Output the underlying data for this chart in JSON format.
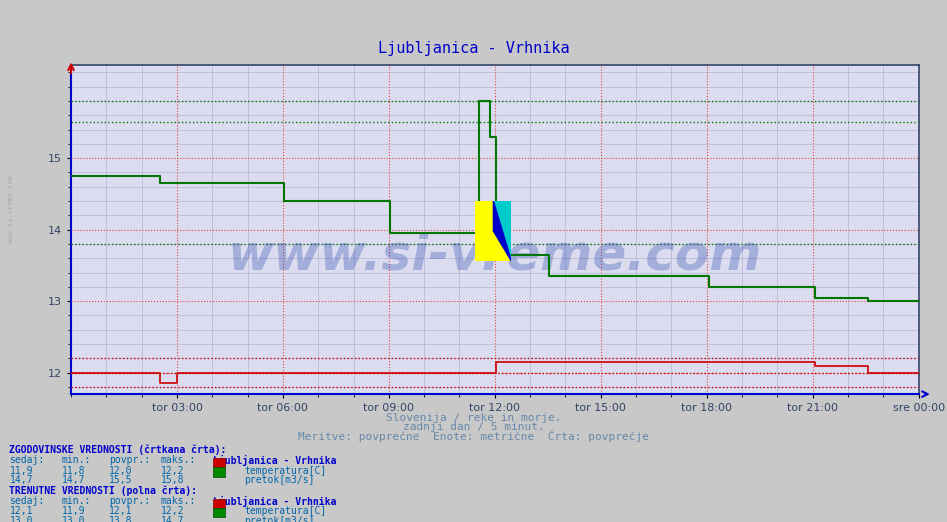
{
  "title": "Ljubljanica - Vrhnika",
  "title_color": "#0000cc",
  "bg_color": "#c8c8c8",
  "plot_bg_color": "#d8d8ff",
  "subtitle1": "Slovenija / reke in morje.",
  "subtitle2": "zadnji dan / 5 minut.",
  "subtitle3": "Meritve: povprečne  Enote: metrične  Črta: povprečje",
  "xtick_labels": [
    "tor 03:00",
    "tor 06:00",
    "tor 09:00",
    "tor 12:00",
    "tor 15:00",
    "tor 18:00",
    "tor 21:00",
    "sre 00:00"
  ],
  "yticks": [
    12,
    13,
    14,
    15
  ],
  "ymin": 11.7,
  "ymax": 16.3,
  "red_color": "#cc0000",
  "green_color": "#007700",
  "watermark": "www.si-vreme.com",
  "watermark_color": "#2244aa",
  "hist_label": "ZGODOVINSKE VREDNOSTI (črtkana črta):",
  "curr_label": "TRENUTNE VREDNOSTI (polna črta):",
  "station_label": "Ljubljanica - Vrhnika",
  "temp_label": "temperatura[C]",
  "flow_label": "pretok[m3/s]",
  "hist_temp_sedaj": "11,9",
  "hist_temp_min": "11,8",
  "hist_temp_povpr": "12,0",
  "hist_temp_maks": "12,2",
  "hist_flow_sedaj": "14,7",
  "hist_flow_min": "14,7",
  "hist_flow_povpr": "15,5",
  "hist_flow_maks": "15,8",
  "curr_temp_sedaj": "12,1",
  "curr_temp_min": "11,9",
  "curr_temp_povpr": "12,1",
  "curr_temp_maks": "12,2",
  "curr_flow_sedaj": "13,0",
  "curr_flow_min": "13,0",
  "curr_flow_povpr": "13,8",
  "curr_flow_maks": "14,7",
  "n_points": 288,
  "hist_green_hlines": [
    15.8,
    15.5,
    13.8
  ],
  "hist_red_hlines": [
    12.2,
    12.0,
    11.8
  ]
}
